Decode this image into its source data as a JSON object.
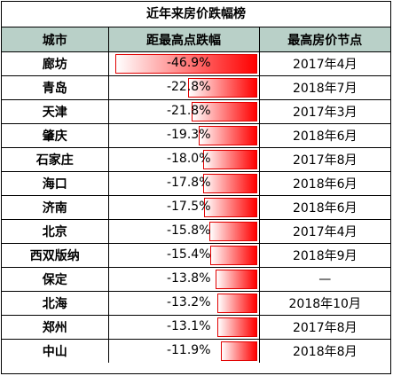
{
  "title": "近年来房价跌幅榜",
  "headers": [
    "城市",
    "距最高点跌幅",
    "最高房价节点"
  ],
  "rows": [
    {
      "city": "廊坊",
      "drop": "-46.9%",
      "drop_value": 46.9,
      "peak": "2017年4月"
    },
    {
      "city": "青岛",
      "drop": "-22.8%",
      "drop_value": 22.8,
      "peak": "2018年7月"
    },
    {
      "city": "天津",
      "drop": "-21.8%",
      "drop_value": 21.8,
      "peak": "2017年3月"
    },
    {
      "city": "肇庆",
      "drop": "-19.3%",
      "drop_value": 19.3,
      "peak": "2018年6月"
    },
    {
      "city": "石家庄",
      "drop": "-18.0%",
      "drop_value": 18.0,
      "peak": "2017年8月"
    },
    {
      "city": "海口",
      "drop": "-17.8%",
      "drop_value": 17.8,
      "peak": "2018年6月"
    },
    {
      "city": "济南",
      "drop": "-17.5%",
      "drop_value": 17.5,
      "peak": "2018年6月"
    },
    {
      "city": "北京",
      "drop": "-15.8%",
      "drop_value": 15.8,
      "peak": "2017年4月"
    },
    {
      "city": "西双版纳",
      "drop": "-15.4%",
      "drop_value": 15.4,
      "peak": "2018年9月"
    },
    {
      "city": "保定",
      "drop": "-13.8%",
      "drop_value": 13.8,
      "peak": "—"
    },
    {
      "city": "北海",
      "drop": "-13.2%",
      "drop_value": 13.2,
      "peak": "2018年10月"
    },
    {
      "city": "郑州",
      "drop": "-13.1%",
      "drop_value": 13.1,
      "peak": "2017年8月"
    },
    {
      "city": "中山",
      "drop": "-11.9%",
      "drop_value": 11.9,
      "peak": "2018年8月"
    }
  ],
  "bar_max_value": 46.9,
  "colors": {
    "header_bg": "#b9d0c8",
    "bar_fill": "#ff0000",
    "bar_border": "#e10000",
    "border": "#000000"
  }
}
